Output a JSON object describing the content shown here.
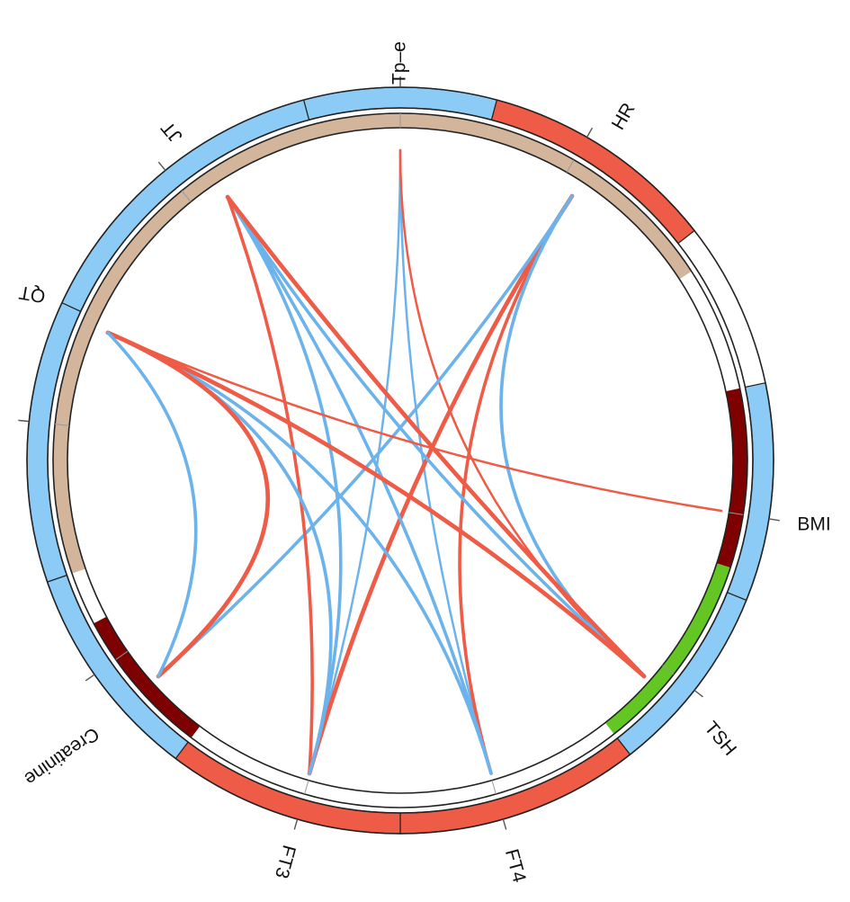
{
  "diagram": {
    "type": "chord",
    "nodes": [
      {
        "id": "tpe",
        "label": "Tp–e",
        "outer_color": "#8ccbf5",
        "inner_color": "#d2b59b"
      },
      {
        "id": "hr",
        "label": "HR",
        "outer_color": "#ee5b46",
        "inner_color": "#d2b59b"
      },
      {
        "id": "bmi",
        "label": "BMI",
        "outer_color": "#8ccbf5",
        "inner_color": "#7f0000"
      },
      {
        "id": "tsh",
        "label": "TSH",
        "outer_color": "#8ccbf5",
        "inner_color": "#63c623"
      },
      {
        "id": "ft4",
        "label": "FT4",
        "outer_color": "#ee5b46",
        "inner_color": null
      },
      {
        "id": "ft3",
        "label": "FT3",
        "outer_color": "#ee5b46",
        "inner_color": null
      },
      {
        "id": "creatinine",
        "label": "Creatinine",
        "outer_color": "#8ccbf5",
        "inner_color": "#7f0000"
      },
      {
        "id": "qt",
        "label": "QT",
        "outer_color": "#8ccbf5",
        "inner_color": "#d2b59b"
      },
      {
        "id": "jt",
        "label": "JT",
        "outer_color": "#8ccbf5",
        "inner_color": "#d2b59b"
      }
    ],
    "link_colors": {
      "positive": "#ee5b46",
      "negative": "#6cb3ec"
    },
    "links": [
      {
        "source": "tpe",
        "target": "ft3",
        "sign": "negative",
        "weight": 1
      },
      {
        "source": "tpe",
        "target": "ft4",
        "sign": "negative",
        "weight": 1
      },
      {
        "source": "tpe",
        "target": "tsh",
        "sign": "positive",
        "weight": 1
      },
      {
        "source": "hr",
        "target": "ft3",
        "sign": "positive",
        "weight": 3
      },
      {
        "source": "hr",
        "target": "ft4",
        "sign": "positive",
        "weight": 2
      },
      {
        "source": "hr",
        "target": "tsh",
        "sign": "negative",
        "weight": 2
      },
      {
        "source": "hr",
        "target": "creatinine",
        "sign": "negative",
        "weight": 2
      },
      {
        "source": "jt",
        "target": "ft3",
        "sign": "blue",
        "weight": 2
      },
      {
        "source": "jt",
        "target": "ft4",
        "sign": "blue",
        "weight": 2
      },
      {
        "source": "jt",
        "target": "tsh",
        "sign": "blue",
        "weight": 2
      },
      {
        "source": "jt",
        "target": "ft3",
        "sign": "red",
        "weight": 2,
        "curve": "outer"
      },
      {
        "source": "jt",
        "target": "tsh",
        "sign": "red",
        "weight": 3,
        "curve": "outer"
      },
      {
        "source": "qt",
        "target": "ft3",
        "sign": "blue",
        "weight": 2
      },
      {
        "source": "qt",
        "target": "ft4",
        "sign": "blue",
        "weight": 2
      },
      {
        "source": "qt",
        "target": "tsh",
        "sign": "red",
        "weight": 3
      },
      {
        "source": "qt",
        "target": "creatinine",
        "sign": "red",
        "weight": 3
      },
      {
        "source": "qt",
        "target": "bmi",
        "sign": "red",
        "weight": 1
      },
      {
        "source": "qt",
        "target": "creatinine",
        "sign": "blue",
        "weight": 2,
        "curve": "outer"
      }
    ]
  }
}
